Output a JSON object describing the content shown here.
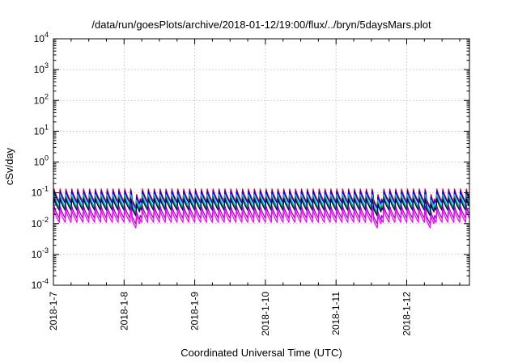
{
  "chart_data": {
    "type": "line",
    "title": "/data/run/goesPlots/archive/2018-01-12/19:00/flux/../bryn/5daysMars.plot",
    "xlabel": "Coordinated Universal Time (UTC)",
    "ylabel": "cSv/day",
    "yscale": "log",
    "ylim": [
      0.0001,
      10000
    ],
    "xlim": [
      "2018-01-07",
      "2018-01-12 19:00"
    ],
    "grid": true,
    "legend": "none",
    "x_ticks": [
      "2018-1-7",
      "2018-1-8",
      "2018-1-9",
      "2018-1-10",
      "2018-1-11",
      "2018-1-12"
    ],
    "y_ticks": [
      {
        "mantissa": "10",
        "exp": "-4",
        "value": 0.0001
      },
      {
        "mantissa": "10",
        "exp": "-3",
        "value": 0.001
      },
      {
        "mantissa": "10",
        "exp": "-2",
        "value": 0.01
      },
      {
        "mantissa": "10",
        "exp": "-1",
        "value": 0.1
      },
      {
        "mantissa": "10",
        "exp": "0",
        "value": 1
      },
      {
        "mantissa": "10",
        "exp": "1",
        "value": 10
      },
      {
        "mantissa": "10",
        "exp": "2",
        "value": 100
      },
      {
        "mantissa": "10",
        "exp": "3",
        "value": 1000
      },
      {
        "mantissa": "10",
        "exp": "4",
        "value": 10000
      }
    ],
    "sawtooth_period_hours": 2,
    "series": [
      {
        "color": "#ff0000",
        "peak": 0.145,
        "trough": 0.052
      },
      {
        "color": "#0000ff",
        "peak": 0.125,
        "trough": 0.046
      },
      {
        "color": "#00ccff",
        "peak": 0.095,
        "trough": 0.036
      },
      {
        "color": "#00aa00",
        "peak": 0.08,
        "trough": 0.031
      },
      {
        "color": "#000066",
        "peak": 0.07,
        "trough": 0.027
      },
      {
        "color": "#9900cc",
        "peak": 0.04,
        "trough": 0.015
      },
      {
        "color": "#ff00ff",
        "peak": 0.03,
        "trough": 0.011
      }
    ]
  }
}
